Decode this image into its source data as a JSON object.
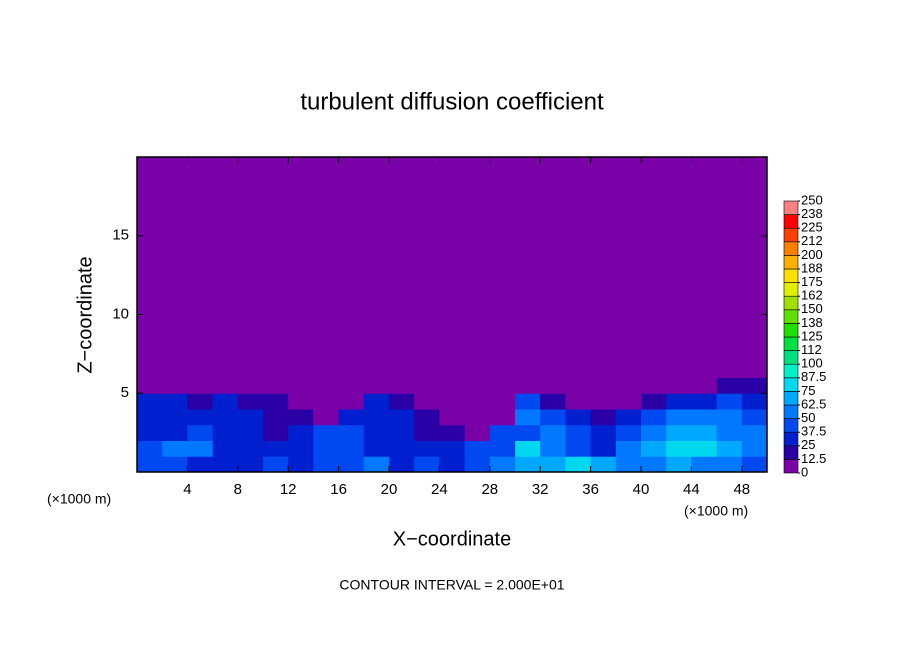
{
  "chart_data": {
    "type": "heatmap",
    "title": "turbulent diffusion coefficient",
    "xlabel": "X−coordinate",
    "ylabel": "Z−coordinate",
    "x_unit": "(×1000 m)",
    "y_unit": "(×1000 m)",
    "note": "CONTOUR INTERVAL = 2.000E+01",
    "xlim": [
      0,
      50
    ],
    "ylim": [
      0,
      20
    ],
    "xticks": [
      4,
      8,
      12,
      16,
      20,
      24,
      28,
      32,
      36,
      40,
      44,
      48
    ],
    "yticks": [
      5,
      10,
      15
    ],
    "x_bins": [
      0,
      2,
      4,
      6,
      8,
      10,
      12,
      14,
      16,
      18,
      20,
      22,
      24,
      26,
      28,
      30,
      32,
      34,
      36,
      38,
      40,
      42,
      44,
      46,
      48,
      50
    ],
    "z_bins": [
      0,
      1,
      2,
      3,
      4,
      5,
      6,
      20
    ],
    "values": [
      [
        40,
        45,
        30,
        30,
        25,
        40,
        30,
        45,
        40,
        50,
        30,
        40,
        30,
        40,
        60,
        70,
        70,
        80,
        70,
        60,
        50,
        70,
        60,
        50,
        40
      ],
      [
        40,
        60,
        50,
        35,
        30,
        30,
        35,
        40,
        45,
        35,
        30,
        25,
        30,
        40,
        40,
        80,
        60,
        40,
        35,
        50,
        70,
        75,
        80,
        70,
        60
      ],
      [
        35,
        30,
        40,
        35,
        25,
        20,
        25,
        40,
        40,
        35,
        35,
        20,
        20,
        10,
        40,
        40,
        60,
        40,
        30,
        40,
        60,
        70,
        70,
        60,
        50
      ],
      [
        35,
        25,
        30,
        30,
        25,
        20,
        15,
        10,
        30,
        35,
        25,
        20,
        5,
        0,
        0,
        50,
        40,
        30,
        20,
        25,
        40,
        55,
        50,
        50,
        45
      ],
      [
        30,
        25,
        20,
        30,
        20,
        20,
        10,
        5,
        10,
        30,
        15,
        5,
        0,
        0,
        0,
        40,
        20,
        10,
        5,
        5,
        20,
        30,
        35,
        40,
        35
      ],
      [
        10,
        0,
        0,
        0,
        0,
        0,
        0,
        0,
        0,
        0,
        0,
        0,
        0,
        0,
        0,
        10,
        0,
        0,
        0,
        0,
        0,
        5,
        10,
        15,
        20
      ],
      [
        0,
        0,
        0,
        0,
        0,
        0,
        0,
        0,
        0,
        0,
        0,
        0,
        0,
        0,
        0,
        0,
        0,
        0,
        0,
        0,
        0,
        0,
        0,
        0,
        0
      ]
    ],
    "colorbar": {
      "levels": [
        0,
        12.5,
        25,
        37.5,
        50,
        62.5,
        75,
        87.5,
        100,
        {
          "value": 112.5,
          "label": "112"
        },
        125,
        {
          "value": 137.5,
          "label": "138"
        },
        150,
        {
          "value": 162.5,
          "label": "162"
        },
        175,
        {
          "value": 187.5,
          "label": "188"
        },
        200,
        {
          "value": 212.5,
          "label": "212"
        },
        225,
        {
          "value": 237.5,
          "label": "238"
        },
        250
      ],
      "colors": [
        "#7a00a8",
        "#2a00a6",
        "#0020d0",
        "#0048f0",
        "#0078ff",
        "#00a8ff",
        "#00d8f0",
        "#00f0c8",
        "#00e080",
        "#00e040",
        "#20e000",
        "#60e000",
        "#a0e000",
        "#e0f000",
        "#ffe000",
        "#ffb000",
        "#ff8000",
        "#ff4000",
        "#ff0000",
        "#ff8080"
      ]
    }
  }
}
